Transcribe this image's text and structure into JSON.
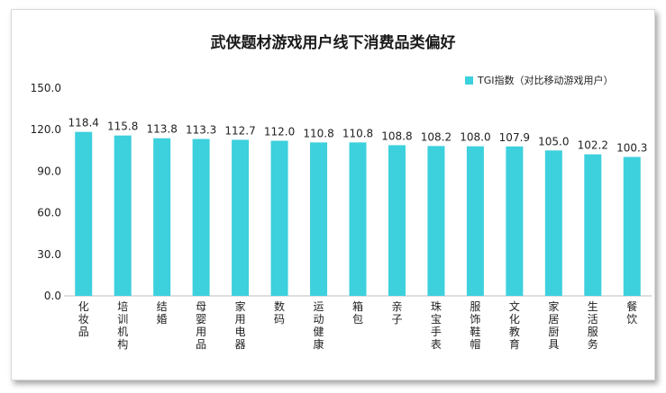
{
  "chart_data": {
    "type": "bar",
    "title": "武侠题材游戏用户线下消费品类偏好",
    "categories": [
      "化妆品",
      "培训机构",
      "结婚",
      "母婴用品",
      "家用电器",
      "数码",
      "运动健康",
      "箱包",
      "亲子",
      "珠宝手表",
      "服饰鞋帽",
      "文化教育",
      "家居厨具",
      "生活服务",
      "餐饮"
    ],
    "series": [
      {
        "name": "TGI指数（对比移动游戏用户）",
        "values": [
          118.4,
          115.8,
          113.8,
          113.3,
          112.7,
          112.0,
          110.8,
          110.8,
          108.8,
          108.2,
          108.0,
          107.9,
          105.0,
          102.2,
          100.3
        ]
      }
    ],
    "value_labels": [
      "118.4",
      "115.8",
      "113.8",
      "113.3",
      "112.7",
      "112.0",
      "110.8",
      "110.8",
      "108.8",
      "108.2",
      "108.0",
      "107.9",
      "105.0",
      "102.2",
      "100.3"
    ],
    "yticks": [
      "0.0",
      "30.0",
      "60.0",
      "90.0",
      "120.0",
      "150.0"
    ],
    "ylim": [
      0,
      150
    ],
    "legend_position": "top-right",
    "grid": false,
    "bar_color": "#3dd0dd"
  }
}
